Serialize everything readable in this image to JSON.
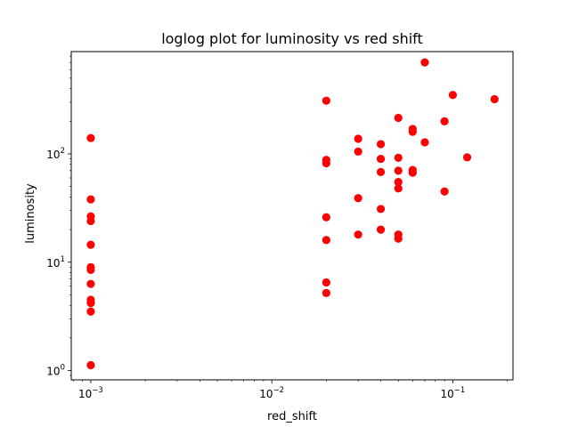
{
  "chart_data": {
    "type": "scatter",
    "title": "loglog plot for luminosity vs red shift",
    "xlabel": "red_shift",
    "ylabel": "luminosity",
    "xscale": "log",
    "yscale": "log",
    "xlim": [
      0.00078,
      0.215
    ],
    "ylim": [
      0.82,
      880
    ],
    "grid": false,
    "marker_color": "#ff0000",
    "x_major_ticks": [
      {
        "value": 0.001,
        "base": "10",
        "exp": "−3"
      },
      {
        "value": 0.01,
        "base": "10",
        "exp": "−2"
      },
      {
        "value": 0.1,
        "base": "10",
        "exp": "−1"
      }
    ],
    "y_major_ticks": [
      {
        "value": 1,
        "base": "10",
        "exp": "0"
      },
      {
        "value": 10,
        "base": "10",
        "exp": "1"
      },
      {
        "value": 100,
        "base": "10",
        "exp": "2"
      }
    ],
    "points": [
      [
        0.001,
        140
      ],
      [
        0.001,
        38
      ],
      [
        0.001,
        26.5
      ],
      [
        0.001,
        24
      ],
      [
        0.001,
        14.5
      ],
      [
        0.001,
        9
      ],
      [
        0.001,
        8.5
      ],
      [
        0.001,
        6.3
      ],
      [
        0.001,
        4.5
      ],
      [
        0.001,
        4.2
      ],
      [
        0.001,
        3.5
      ],
      [
        0.001,
        1.12
      ],
      [
        0.02,
        310
      ],
      [
        0.02,
        88
      ],
      [
        0.02,
        82
      ],
      [
        0.02,
        26
      ],
      [
        0.02,
        16
      ],
      [
        0.02,
        6.5
      ],
      [
        0.02,
        5.2
      ],
      [
        0.03,
        138
      ],
      [
        0.03,
        105
      ],
      [
        0.03,
        39
      ],
      [
        0.03,
        18
      ],
      [
        0.04,
        123
      ],
      [
        0.04,
        90
      ],
      [
        0.04,
        68
      ],
      [
        0.04,
        31
      ],
      [
        0.04,
        20
      ],
      [
        0.05,
        215
      ],
      [
        0.05,
        92
      ],
      [
        0.05,
        70
      ],
      [
        0.05,
        55
      ],
      [
        0.05,
        48
      ],
      [
        0.05,
        18
      ],
      [
        0.05,
        16.5
      ],
      [
        0.06,
        170
      ],
      [
        0.06,
        160
      ],
      [
        0.06,
        71
      ],
      [
        0.06,
        67
      ],
      [
        0.07,
        700
      ],
      [
        0.07,
        128
      ],
      [
        0.09,
        200
      ],
      [
        0.09,
        45
      ],
      [
        0.1,
        350
      ],
      [
        0.12,
        93
      ],
      [
        0.17,
        320
      ]
    ]
  }
}
